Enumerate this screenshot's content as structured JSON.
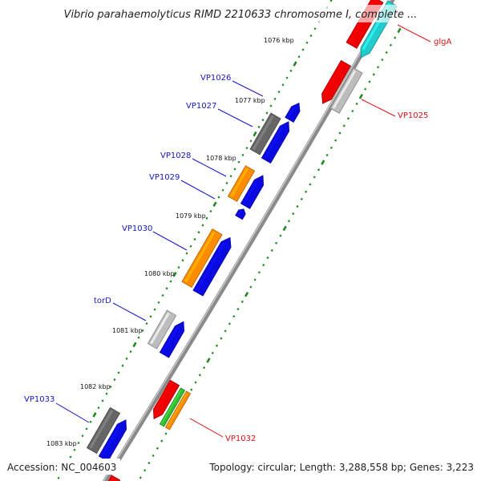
{
  "map": {
    "title": "Vibrio parahaemolyticus RIMD 2210633 chromosome I, complete ...",
    "accession": "Accession: NC_004603",
    "summary": "Topology: circular; Length: 3,288,558 bp; Genes: 3,223",
    "colors": {
      "label_left": "#1515c8",
      "label_right": "#dd1111",
      "tick": "#1e8a1e",
      "backbone": "#8a8a8a",
      "gene_blue": "#0a0ae0",
      "gene_orange": "#ff8c00",
      "gene_red": "#ee0000",
      "gene_cyan": "#22cccc",
      "gene_green": "#33bb33",
      "gene_gray": "#bdbdbd",
      "gene_dark": "#666666"
    },
    "kbp_labels": [
      {
        "text": "1076 kbp"
      },
      {
        "text": "1077 kbp"
      },
      {
        "text": "1078 kbp"
      },
      {
        "text": "1079 kbp"
      },
      {
        "text": "1080 kbp"
      },
      {
        "text": "1081 kbp"
      },
      {
        "text": "1082 kbp"
      },
      {
        "text": "1083 kbp"
      }
    ],
    "gene_labels_left": [
      {
        "text": "VP1026"
      },
      {
        "text": "VP1027"
      },
      {
        "text": "VP1028"
      },
      {
        "text": "VP1029"
      },
      {
        "text": "VP1030"
      },
      {
        "text": "torD"
      },
      {
        "text": "VP1033"
      }
    ],
    "gene_labels_right": [
      {
        "text": "glgA"
      },
      {
        "text": "VP1025"
      },
      {
        "text": "VP1032"
      }
    ]
  }
}
